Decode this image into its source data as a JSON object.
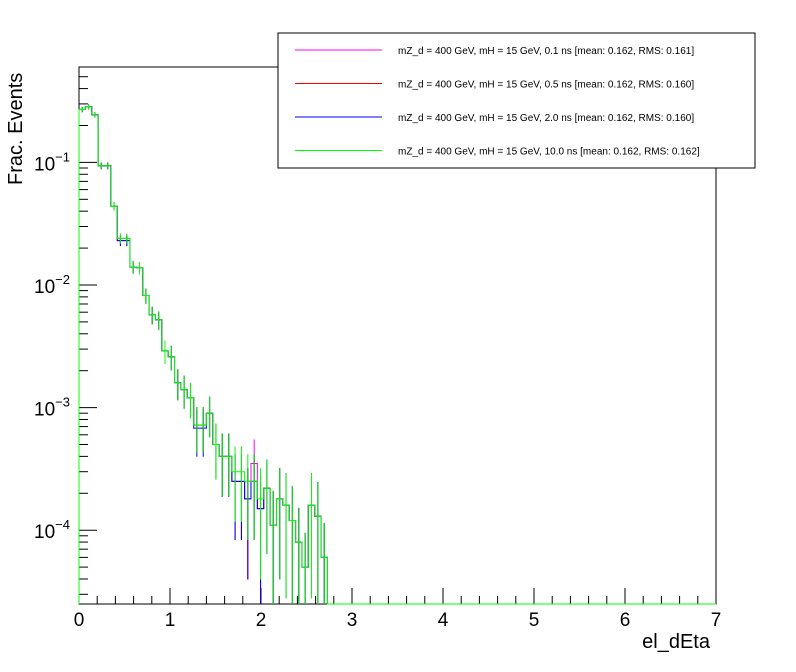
{
  "chart_data": {
    "type": "line",
    "style": "step-histogram-with-error-bars",
    "xlabel": "el_dEta",
    "ylabel": "Frac. Events",
    "xlim": [
      0,
      7
    ],
    "ylim": [
      2.5e-05,
      0.6
    ],
    "yscale": "log",
    "x_ticks": [
      0,
      1,
      2,
      3,
      4,
      5,
      6,
      7
    ],
    "x_tick_labels": [
      "0",
      "1",
      "2",
      "3",
      "4",
      "5",
      "6",
      "7"
    ],
    "y_major_ticks": [
      0.0001,
      0.001,
      0.01,
      0.1
    ],
    "y_tick_labels": [
      {
        "base": "10",
        "exp": "−4"
      },
      {
        "base": "10",
        "exp": "−3"
      },
      {
        "base": "10",
        "exp": "−2"
      },
      {
        "base": "10",
        "exp": "−1"
      }
    ],
    "grid": false,
    "legend_position": "top-right",
    "bin_width": 0.07,
    "series": [
      {
        "name": "mZ_d = 400 GeV, mH = 15 GeV, 0.1 ns [mean: 0.162, RMS: 0.161]",
        "color": "#ff00ff",
        "values": [
          0.27,
          0.285,
          0.245,
          0.094,
          0.094,
          0.044,
          0.024,
          0.024,
          0.014,
          0.0138,
          0.0082,
          0.0057,
          0.0052,
          0.0029,
          0.0026,
          0.0016,
          0.0014,
          0.0012,
          0.00072,
          0.00072,
          0.0009,
          0.0005,
          0.0004,
          0.0004,
          0.00025,
          0.00025,
          0.00018,
          0.00035,
          0.00015,
          0.00022,
          0.00011,
          0.00018,
          0.00016,
          0.00012,
          8e-05,
          5e-05,
          0.00016,
          0.00013,
          6e-05,
          0
        ]
      },
      {
        "name": "mZ_d = 400 GeV, mH = 15 GeV, 0.5 ns [mean: 0.162, RMS: 0.160]",
        "color": "#ff0000",
        "values": [
          0.27,
          0.285,
          0.245,
          0.094,
          0.094,
          0.044,
          0.023,
          0.023,
          0.014,
          0.0138,
          0.0082,
          0.0057,
          0.0052,
          0.0029,
          0.0026,
          0.0016,
          0.0014,
          0.0012,
          0.00072,
          0.00072,
          0.0009,
          0.0005,
          0.0004,
          0.0004,
          0.00025,
          0.00025,
          0.00018,
          0.00025,
          0.00015,
          0.00022,
          0.00011,
          0.00018,
          0.00016,
          0.00012,
          8e-05,
          5e-05,
          0.00016,
          0.00013,
          6e-05,
          0
        ]
      },
      {
        "name": "mZ_d = 400 GeV, mH = 15 GeV, 2.0 ns [mean: 0.162, RMS: 0.160]",
        "color": "#0000ff",
        "values": [
          0.27,
          0.285,
          0.245,
          0.094,
          0.094,
          0.044,
          0.023,
          0.023,
          0.014,
          0.0138,
          0.0082,
          0.0057,
          0.0052,
          0.0029,
          0.0026,
          0.0016,
          0.0014,
          0.0012,
          0.00068,
          0.00068,
          0.0009,
          0.0005,
          0.0004,
          0.0004,
          0.00025,
          0.00025,
          0.00018,
          0.00025,
          0.00015,
          0.00022,
          0.00011,
          0.00018,
          0.00016,
          0.00012,
          8e-05,
          5e-05,
          0.00016,
          0.00013,
          6e-05,
          0
        ]
      },
      {
        "name": "mZ_d = 400 GeV, mH = 15 GeV, 10.0 ns [mean: 0.162, RMS: 0.162]",
        "color": "#00ff00",
        "values": [
          0.27,
          0.285,
          0.245,
          0.094,
          0.094,
          0.044,
          0.024,
          0.024,
          0.014,
          0.0138,
          0.0082,
          0.0057,
          0.0052,
          0.0029,
          0.0026,
          0.0016,
          0.0014,
          0.0012,
          0.00072,
          0.00072,
          0.0009,
          0.0005,
          0.0004,
          0.0004,
          0.0003,
          0.0003,
          0.00025,
          0.00025,
          0.00018,
          0.00022,
          0.00011,
          0.00018,
          0.00016,
          0.00012,
          8e-05,
          5e-05,
          0.00016,
          0.00013,
          6e-05,
          0
        ]
      }
    ]
  }
}
